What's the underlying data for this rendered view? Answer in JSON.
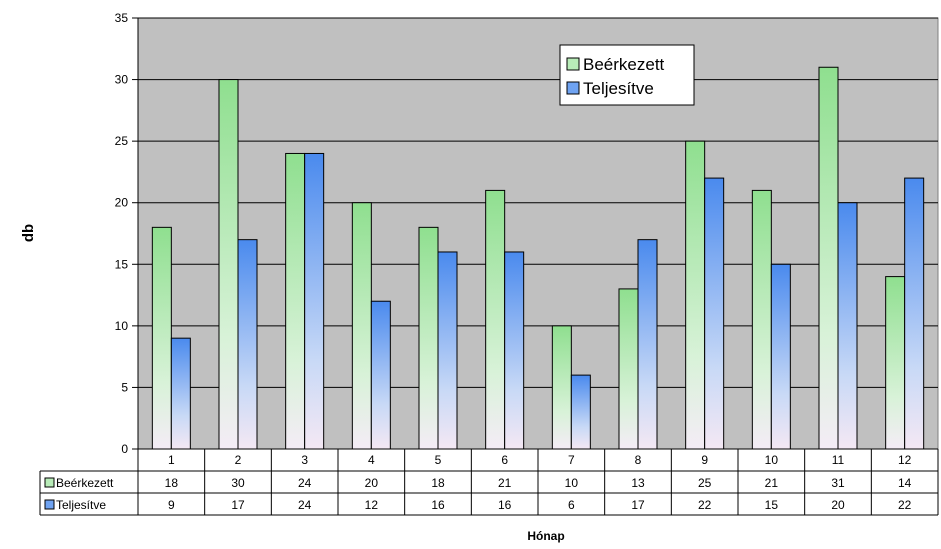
{
  "chart_data": {
    "type": "bar",
    "categories": [
      "1",
      "2",
      "3",
      "4",
      "5",
      "6",
      "7",
      "8",
      "9",
      "10",
      "11",
      "12"
    ],
    "series": [
      {
        "name": "Beérkezett",
        "values": [
          18,
          30,
          24,
          20,
          18,
          21,
          10,
          13,
          25,
          21,
          31,
          14
        ],
        "color": "#9fe59f"
      },
      {
        "name": "Teljesítve",
        "values": [
          9,
          17,
          24,
          12,
          16,
          16,
          6,
          17,
          22,
          15,
          20,
          22
        ],
        "color": "#4f8fef"
      }
    ],
    "ylabel": "db",
    "xlabel": "Hónap",
    "ylim": [
      0,
      35
    ],
    "yticks": [
      "0",
      "5",
      "10",
      "15",
      "20",
      "25",
      "30",
      "35"
    ],
    "grid": true,
    "legend_position": "top-right",
    "data_table": true,
    "plot_background": "#c0c0c0"
  }
}
